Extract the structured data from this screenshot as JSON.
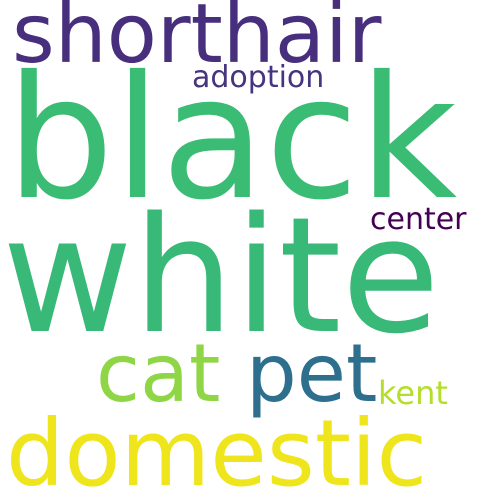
{
  "words": [
    {
      "key": "shorthair",
      "text": "shorthair",
      "color": "#472f7d"
    },
    {
      "key": "black",
      "text": "black",
      "color": "#3bbc74"
    },
    {
      "key": "adoption",
      "text": "adoption",
      "color": "#463480"
    },
    {
      "key": "center",
      "text": "center",
      "color": "#440154"
    },
    {
      "key": "white",
      "text": "white",
      "color": "#38b977"
    },
    {
      "key": "cat",
      "text": "cat",
      "color": "#8ed645"
    },
    {
      "key": "pet",
      "text": "pet",
      "color": "#2e6f8e"
    },
    {
      "key": "kent",
      "text": "kent",
      "color": "#b5de2b"
    },
    {
      "key": "domestic",
      "text": "domestic",
      "color": "#efe51c"
    }
  ]
}
